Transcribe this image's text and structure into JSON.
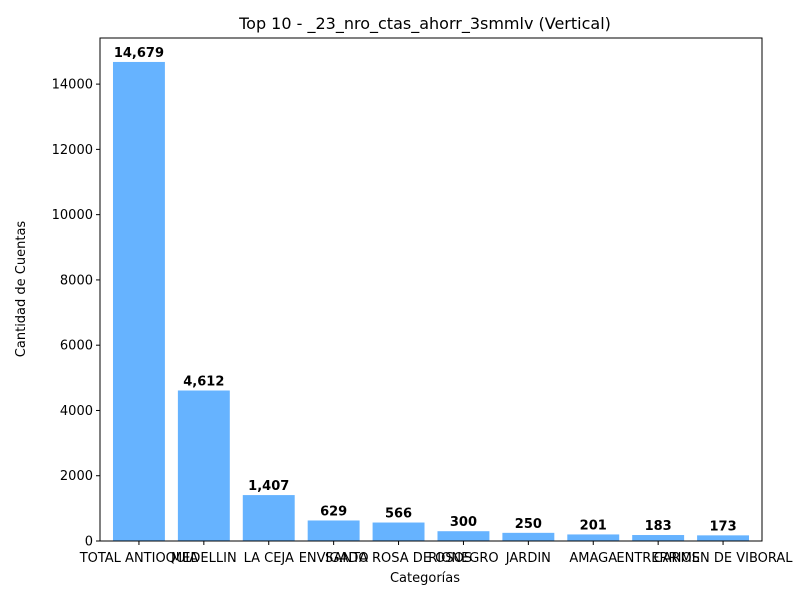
{
  "chart_data": {
    "type": "bar",
    "title": "Top 10 - _23_nro_ctas_ahorr_3smmlv (Vertical)",
    "xlabel": "Categorías",
    "ylabel": "Cantidad de Cuentas",
    "categories": [
      "TOTAL ANTIOQUIA",
      "MEDELLIN",
      "LA CEJA",
      "ENVIGADO",
      "SANTA ROSA DE OSOS",
      "RIONEGRO",
      "JARDIN",
      "AMAGA",
      "ENTRERRIOS",
      "CARMEN DE VIBORAL"
    ],
    "values": [
      14679,
      4612,
      1407,
      629,
      566,
      300,
      250,
      201,
      183,
      173
    ],
    "value_labels": [
      "14,679",
      "4,612",
      "1,407",
      "629",
      "566",
      "300",
      "250",
      "201",
      "183",
      "173"
    ],
    "y_ticks": [
      0,
      2000,
      4000,
      6000,
      8000,
      10000,
      12000,
      14000
    ],
    "y_tick_labels": [
      "0",
      "2000",
      "4000",
      "6000",
      "8000",
      "10000",
      "12000",
      "14000"
    ],
    "ylim": [
      0,
      15413
    ],
    "bar_color": "#66b3ff",
    "grid": false,
    "legend": "none"
  }
}
